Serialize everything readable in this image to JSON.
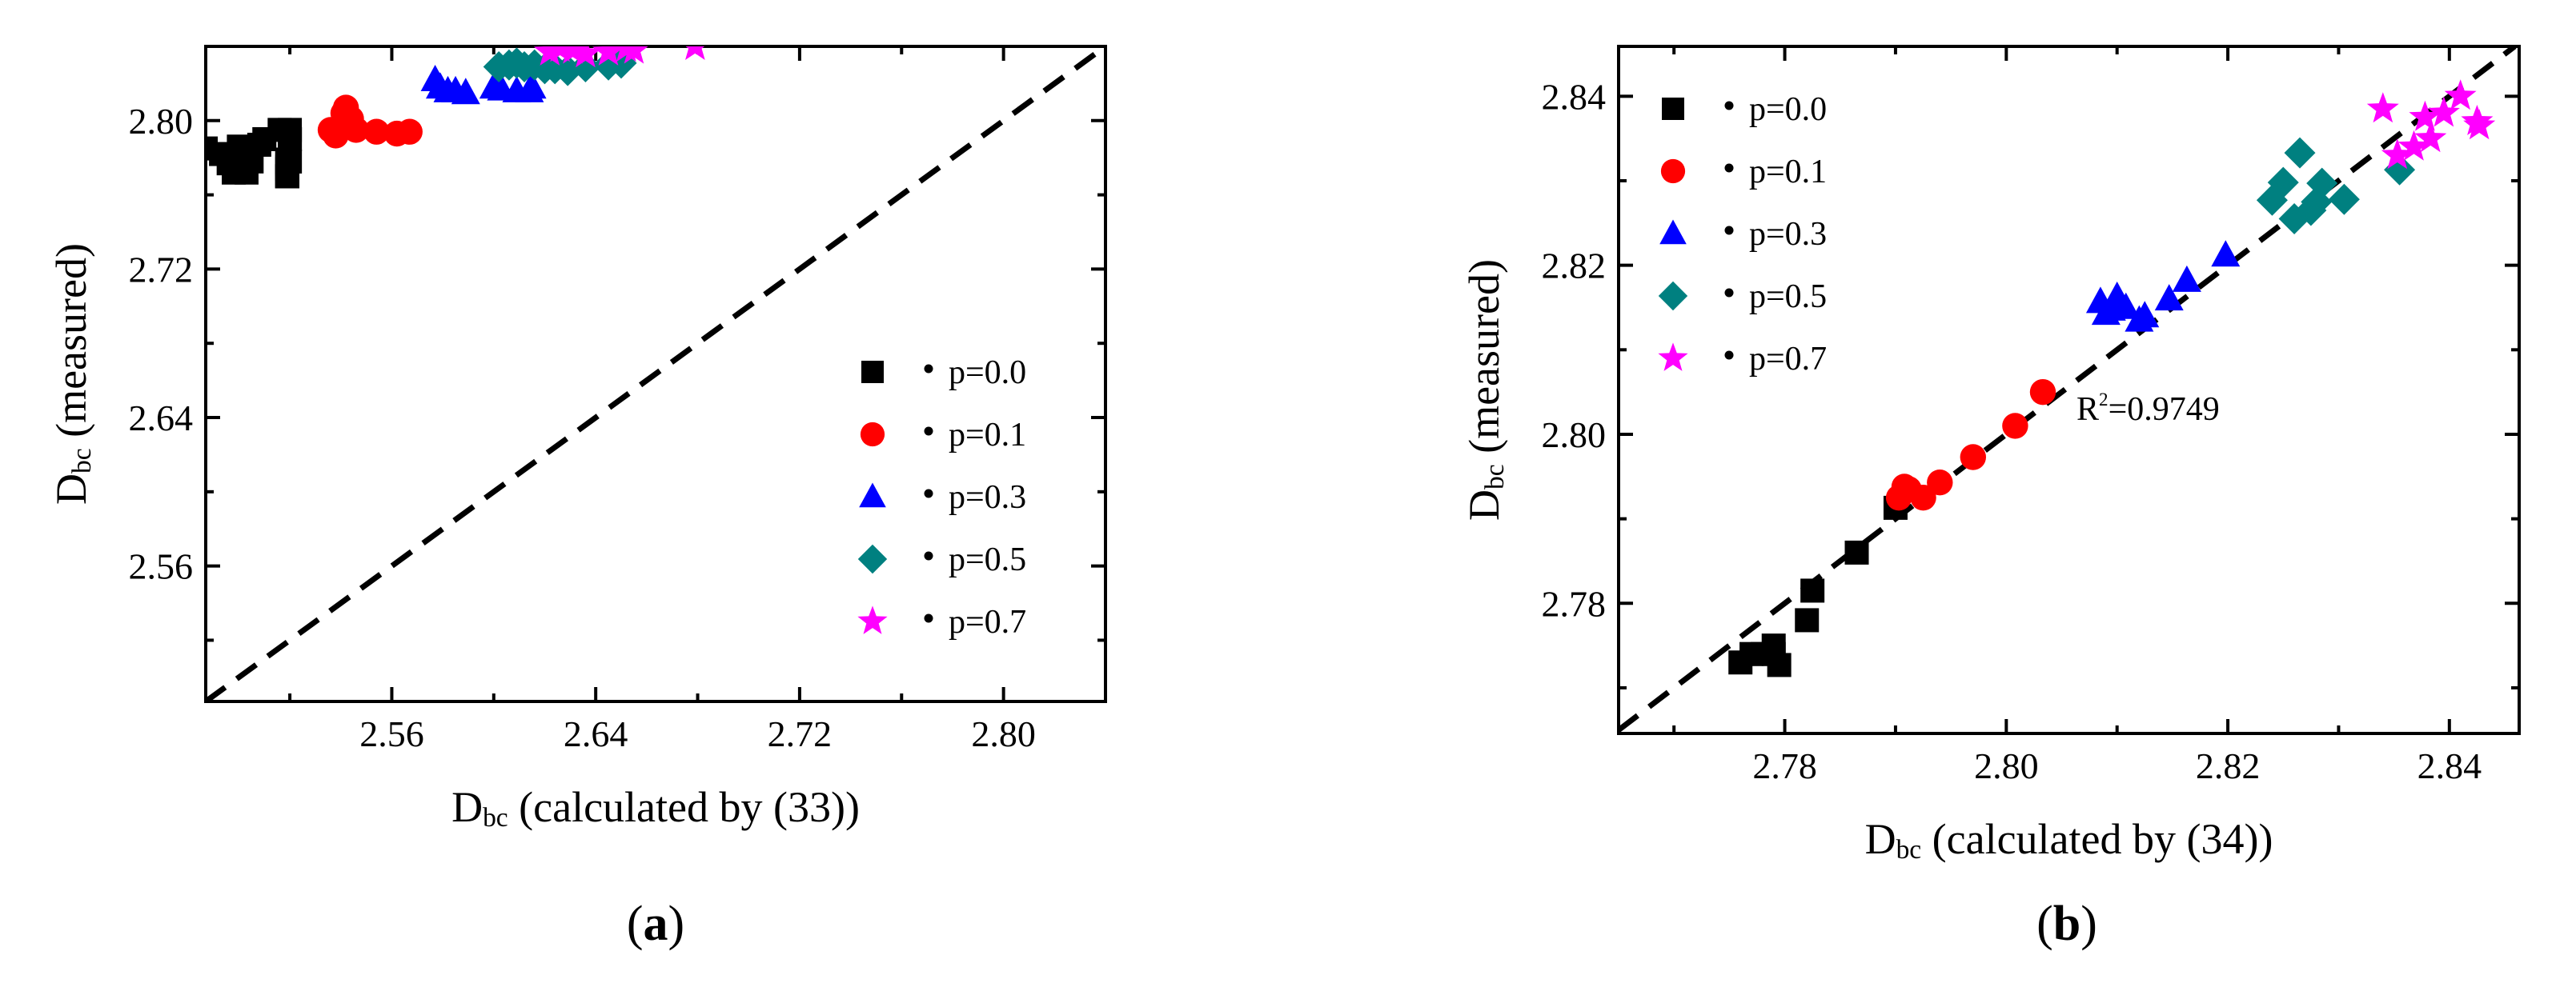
{
  "chart_data": [
    {
      "id": "a",
      "panel_label": {
        "open": "(",
        "letter": "a",
        "close": ")"
      },
      "type": "scatter",
      "xlabel": {
        "main": "D",
        "sub": "bc",
        "rest": " (calculated by (33))"
      },
      "ylabel": {
        "main": "D",
        "sub": "bc",
        "rest": " (measured)"
      },
      "xlim": [
        2.487,
        2.84
      ],
      "ylim": [
        2.487,
        2.84
      ],
      "xticks": [
        2.56,
        2.64,
        2.72,
        2.8
      ],
      "xtick_labels": [
        "2.56",
        "2.64",
        "2.72",
        "2.80"
      ],
      "yticks": [
        2.56,
        2.64,
        2.72,
        2.8
      ],
      "ytick_labels": [
        "2.56",
        "2.64",
        "2.72",
        "2.80"
      ],
      "reference_line": "y = x",
      "legend_position": "bottom-right",
      "annotation": "",
      "series": [
        {
          "name": "p=0.0",
          "marker": "square",
          "color": "#000000",
          "points": [
            [
              2.487,
              2.785
            ],
            [
              2.493,
              2.782
            ],
            [
              2.496,
              2.777
            ],
            [
              2.498,
              2.772
            ],
            [
              2.5,
              2.786
            ],
            [
              2.503,
              2.772
            ],
            [
              2.505,
              2.778
            ],
            [
              2.508,
              2.787
            ],
            [
              2.51,
              2.79
            ],
            [
              2.516,
              2.795
            ],
            [
              2.519,
              2.775
            ],
            [
              2.52,
              2.778
            ],
            [
              2.52,
              2.795
            ],
            [
              2.52,
              2.778
            ],
            [
              2.52,
              2.79
            ],
            [
              2.52,
              2.79
            ],
            [
              2.519,
              2.777
            ],
            [
              2.519,
              2.777
            ],
            [
              2.519,
              2.774
            ],
            [
              2.519,
              2.779
            ],
            [
              2.519,
              2.774
            ],
            [
              2.519,
              2.778
            ],
            [
              2.519,
              2.77
            ],
            [
              2.519,
              2.77
            ],
            [
              2.519,
              2.77
            ],
            [
              2.519,
              2.77
            ],
            [
              2.519,
              2.77
            ],
            [
              2.519,
              2.77
            ],
            [
              2.519,
              2.77
            ],
            [
              2.519,
              2.77
            ]
          ]
        },
        {
          "name": "p=0.1",
          "marker": "circle",
          "color": "#ff0000",
          "points": [
            [
              2.536,
              2.795
            ],
            [
              2.538,
              2.792
            ],
            [
              2.54,
              2.797
            ],
            [
              2.541,
              2.804
            ],
            [
              2.542,
              2.807
            ],
            [
              2.544,
              2.801
            ],
            [
              2.546,
              2.795
            ],
            [
              2.554,
              2.794
            ],
            [
              2.562,
              2.793
            ],
            [
              2.567,
              2.794
            ]
          ]
        },
        {
          "name": "p=0.3",
          "marker": "triangle",
          "color": "#0000ff",
          "points": [
            [
              2.577,
              2.822
            ],
            [
              2.579,
              2.818
            ],
            [
              2.582,
              2.816
            ],
            [
              2.585,
              2.816
            ],
            [
              2.589,
              2.815
            ],
            [
              2.6,
              2.818
            ],
            [
              2.603,
              2.817
            ],
            [
              2.609,
              2.816
            ],
            [
              2.614,
              2.816
            ],
            [
              2.615,
              2.818
            ]
          ]
        },
        {
          "name": "p=0.5",
          "marker": "diamond",
          "color": "#008080",
          "points": [
            [
              2.602,
              2.829
            ],
            [
              2.606,
              2.83
            ],
            [
              2.609,
              2.831
            ],
            [
              2.612,
              2.829
            ],
            [
              2.616,
              2.83
            ],
            [
              2.62,
              2.828
            ],
            [
              2.624,
              2.828
            ],
            [
              2.629,
              2.827
            ],
            [
              2.636,
              2.829
            ],
            [
              2.645,
              2.83
            ],
            [
              2.65,
              2.831
            ]
          ]
        },
        {
          "name": "p=0.7",
          "marker": "star",
          "color": "#ff00ff",
          "points": [
            [
              2.622,
              2.837
            ],
            [
              2.626,
              2.839
            ],
            [
              2.631,
              2.838
            ],
            [
              2.636,
              2.836
            ],
            [
              2.645,
              2.837
            ],
            [
              2.652,
              2.839
            ],
            [
              2.655,
              2.838
            ],
            [
              2.679,
              2.84
            ]
          ]
        }
      ]
    },
    {
      "id": "b",
      "panel_label": {
        "open": "(",
        "letter": "b",
        "close": ")"
      },
      "type": "scatter",
      "xlabel": {
        "main": "D",
        "sub": "bc",
        "rest": " (calculated by (34))"
      },
      "ylabel": {
        "main": "D",
        "sub": "bc",
        "rest": " (measured)"
      },
      "xlim": [
        2.765,
        2.8463
      ],
      "ylim": [
        2.7646,
        2.8459
      ],
      "xticks": [
        2.78,
        2.8,
        2.82,
        2.84
      ],
      "xtick_labels": [
        "2.78",
        "2.80",
        "2.82",
        "2.84"
      ],
      "yticks": [
        2.78,
        2.8,
        2.82,
        2.84
      ],
      "ytick_labels": [
        "2.78",
        "2.80",
        "2.82",
        "2.84"
      ],
      "reference_line": "y = x",
      "legend_position": "top-left",
      "annotation": {
        "prefix": "R",
        "sup": "2",
        "value": "=0.9749"
      },
      "series": [
        {
          "name": "p=0.0",
          "marker": "square",
          "color": "#000000",
          "points": [
            [
              2.776,
              2.773
            ],
            [
              2.777,
              2.774
            ],
            [
              2.778,
              2.774
            ],
            [
              2.779,
              2.775
            ],
            [
              2.779,
              2.774
            ],
            [
              2.7795,
              2.7727
            ],
            [
              2.782,
              2.778
            ],
            [
              2.7825,
              2.7815
            ],
            [
              2.7865,
              2.786
            ],
            [
              2.79,
              2.7913
            ]
          ]
        },
        {
          "name": "p=0.1",
          "marker": "circle",
          "color": "#ff0000",
          "points": [
            [
              2.7903,
              2.7925
            ],
            [
              2.7908,
              2.7938
            ],
            [
              2.7912,
              2.7935
            ],
            [
              2.7925,
              2.7925
            ],
            [
              2.794,
              2.7943
            ],
            [
              2.797,
              2.7973
            ],
            [
              2.8008,
              2.801
            ],
            [
              2.8033,
              2.805
            ]
          ]
        },
        {
          "name": "p=0.3",
          "marker": "triangle",
          "color": "#0000ff",
          "points": [
            [
              2.8085,
              2.8157
            ],
            [
              2.809,
              2.8143
            ],
            [
              2.8095,
              2.8148
            ],
            [
              2.81,
              2.8163
            ],
            [
              2.8108,
              2.815
            ],
            [
              2.812,
              2.8135
            ],
            [
              2.8125,
              2.814
            ],
            [
              2.8147,
              2.816
            ],
            [
              2.8163,
              2.8182
            ],
            [
              2.8198,
              2.8212
            ]
          ]
        },
        {
          "name": "p=0.5",
          "marker": "diamond",
          "color": "#008080",
          "points": [
            [
              2.824,
              2.8277
            ],
            [
              2.825,
              2.8298
            ],
            [
              2.826,
              2.8255
            ],
            [
              2.8265,
              2.8333
            ],
            [
              2.8275,
              2.8265
            ],
            [
              2.828,
              2.8275
            ],
            [
              2.8285,
              2.8297
            ],
            [
              2.8305,
              2.8278
            ],
            [
              2.8355,
              2.8313
            ]
          ]
        },
        {
          "name": "p=0.7",
          "marker": "star",
          "color": "#ff00ff",
          "points": [
            [
              2.834,
              2.8385
            ],
            [
              2.8353,
              2.833
            ],
            [
              2.8368,
              2.834
            ],
            [
              2.8378,
              2.8375
            ],
            [
              2.8383,
              2.835
            ],
            [
              2.8395,
              2.838
            ],
            [
              2.841,
              2.84
            ],
            [
              2.8425,
              2.837
            ],
            [
              2.8427,
              2.8365
            ]
          ]
        }
      ]
    }
  ]
}
